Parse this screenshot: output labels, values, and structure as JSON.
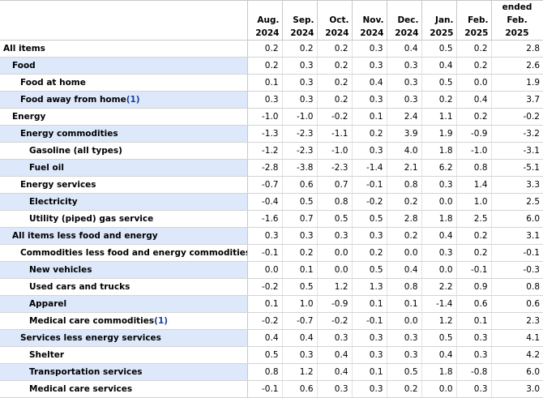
{
  "header": {
    "columns": [
      {
        "line1": "Aug.",
        "line2": "2024"
      },
      {
        "line1": "Sep.",
        "line2": "2024"
      },
      {
        "line1": "Oct.",
        "line2": "2024"
      },
      {
        "line1": "Nov.",
        "line2": "2024"
      },
      {
        "line1": "Dec.",
        "line2": "2024"
      },
      {
        "line1": "Jan.",
        "line2": "2025"
      },
      {
        "line1": "Feb.",
        "line2": "2025"
      },
      {
        "line1": "ended",
        "line2": "Feb. 2025"
      }
    ]
  },
  "rows": [
    {
      "label": "All items",
      "fn": "",
      "indent": 0,
      "shaded": false,
      "values": [
        "0.2",
        "0.2",
        "0.2",
        "0.3",
        "0.4",
        "0.5",
        "0.2",
        "2.8"
      ]
    },
    {
      "label": "Food",
      "fn": "",
      "indent": 1,
      "shaded": true,
      "values": [
        "0.2",
        "0.3",
        "0.2",
        "0.3",
        "0.3",
        "0.4",
        "0.2",
        "2.6"
      ]
    },
    {
      "label": "Food at home",
      "fn": "",
      "indent": 2,
      "shaded": false,
      "values": [
        "0.1",
        "0.3",
        "0.2",
        "0.4",
        "0.3",
        "0.5",
        "0.0",
        "1.9"
      ]
    },
    {
      "label": "Food away from home",
      "fn": "(1)",
      "indent": 2,
      "shaded": true,
      "values": [
        "0.3",
        "0.3",
        "0.2",
        "0.3",
        "0.3",
        "0.2",
        "0.4",
        "3.7"
      ]
    },
    {
      "label": "Energy",
      "fn": "",
      "indent": 1,
      "shaded": false,
      "values": [
        "-1.0",
        "-1.0",
        "-0.2",
        "0.1",
        "2.4",
        "1.1",
        "0.2",
        "-0.2"
      ]
    },
    {
      "label": "Energy commodities",
      "fn": "",
      "indent": 2,
      "shaded": true,
      "values": [
        "-1.3",
        "-2.3",
        "-1.1",
        "0.2",
        "3.9",
        "1.9",
        "-0.9",
        "-3.2"
      ]
    },
    {
      "label": "Gasoline (all types)",
      "fn": "",
      "indent": 3,
      "shaded": false,
      "values": [
        "-1.2",
        "-2.3",
        "-1.0",
        "0.3",
        "4.0",
        "1.8",
        "-1.0",
        "-3.1"
      ]
    },
    {
      "label": "Fuel oil",
      "fn": "",
      "indent": 3,
      "shaded": true,
      "values": [
        "-2.8",
        "-3.8",
        "-2.3",
        "-1.4",
        "2.1",
        "6.2",
        "0.8",
        "-5.1"
      ]
    },
    {
      "label": "Energy services",
      "fn": "",
      "indent": 2,
      "shaded": false,
      "values": [
        "-0.7",
        "0.6",
        "0.7",
        "-0.1",
        "0.8",
        "0.3",
        "1.4",
        "3.3"
      ]
    },
    {
      "label": "Electricity",
      "fn": "",
      "indent": 3,
      "shaded": true,
      "values": [
        "-0.4",
        "0.5",
        "0.8",
        "-0.2",
        "0.2",
        "0.0",
        "1.0",
        "2.5"
      ]
    },
    {
      "label": "Utility (piped) gas service",
      "fn": "",
      "indent": 3,
      "shaded": false,
      "values": [
        "-1.6",
        "0.7",
        "0.5",
        "0.5",
        "2.8",
        "1.8",
        "2.5",
        "6.0"
      ]
    },
    {
      "label": "All items less food and energy",
      "fn": "",
      "indent": 1,
      "shaded": true,
      "values": [
        "0.3",
        "0.3",
        "0.3",
        "0.3",
        "0.2",
        "0.4",
        "0.2",
        "3.1"
      ]
    },
    {
      "label": "Commodities less food and energy commodities",
      "fn": "",
      "indent": 2,
      "shaded": false,
      "values": [
        "-0.1",
        "0.2",
        "0.0",
        "0.2",
        "0.0",
        "0.3",
        "0.2",
        "-0.1"
      ]
    },
    {
      "label": "New vehicles",
      "fn": "",
      "indent": 3,
      "shaded": true,
      "values": [
        "0.0",
        "0.1",
        "0.0",
        "0.5",
        "0.4",
        "0.0",
        "-0.1",
        "-0.3"
      ]
    },
    {
      "label": "Used cars and trucks",
      "fn": "",
      "indent": 3,
      "shaded": false,
      "values": [
        "-0.2",
        "0.5",
        "1.2",
        "1.3",
        "0.8",
        "2.2",
        "0.9",
        "0.8"
      ]
    },
    {
      "label": "Apparel",
      "fn": "",
      "indent": 3,
      "shaded": true,
      "values": [
        "0.1",
        "1.0",
        "-0.9",
        "0.1",
        "0.1",
        "-1.4",
        "0.6",
        "0.6"
      ]
    },
    {
      "label": "Medical care commodities",
      "fn": "(1)",
      "indent": 3,
      "shaded": false,
      "values": [
        "-0.2",
        "-0.7",
        "-0.2",
        "-0.1",
        "0.0",
        "1.2",
        "0.1",
        "2.3"
      ]
    },
    {
      "label": "Services less energy services",
      "fn": "",
      "indent": 2,
      "shaded": true,
      "values": [
        "0.4",
        "0.4",
        "0.3",
        "0.3",
        "0.3",
        "0.5",
        "0.3",
        "4.1"
      ]
    },
    {
      "label": "Shelter",
      "fn": "",
      "indent": 3,
      "shaded": false,
      "values": [
        "0.5",
        "0.3",
        "0.4",
        "0.3",
        "0.3",
        "0.4",
        "0.3",
        "4.2"
      ]
    },
    {
      "label": "Transportation services",
      "fn": "",
      "indent": 3,
      "shaded": true,
      "values": [
        "0.8",
        "1.2",
        "0.4",
        "0.1",
        "0.5",
        "1.8",
        "-0.8",
        "6.0"
      ]
    },
    {
      "label": "Medical care services",
      "fn": "",
      "indent": 3,
      "shaded": false,
      "values": [
        "-0.1",
        "0.6",
        "0.3",
        "0.3",
        "0.2",
        "0.0",
        "0.3",
        "3.0"
      ]
    }
  ]
}
